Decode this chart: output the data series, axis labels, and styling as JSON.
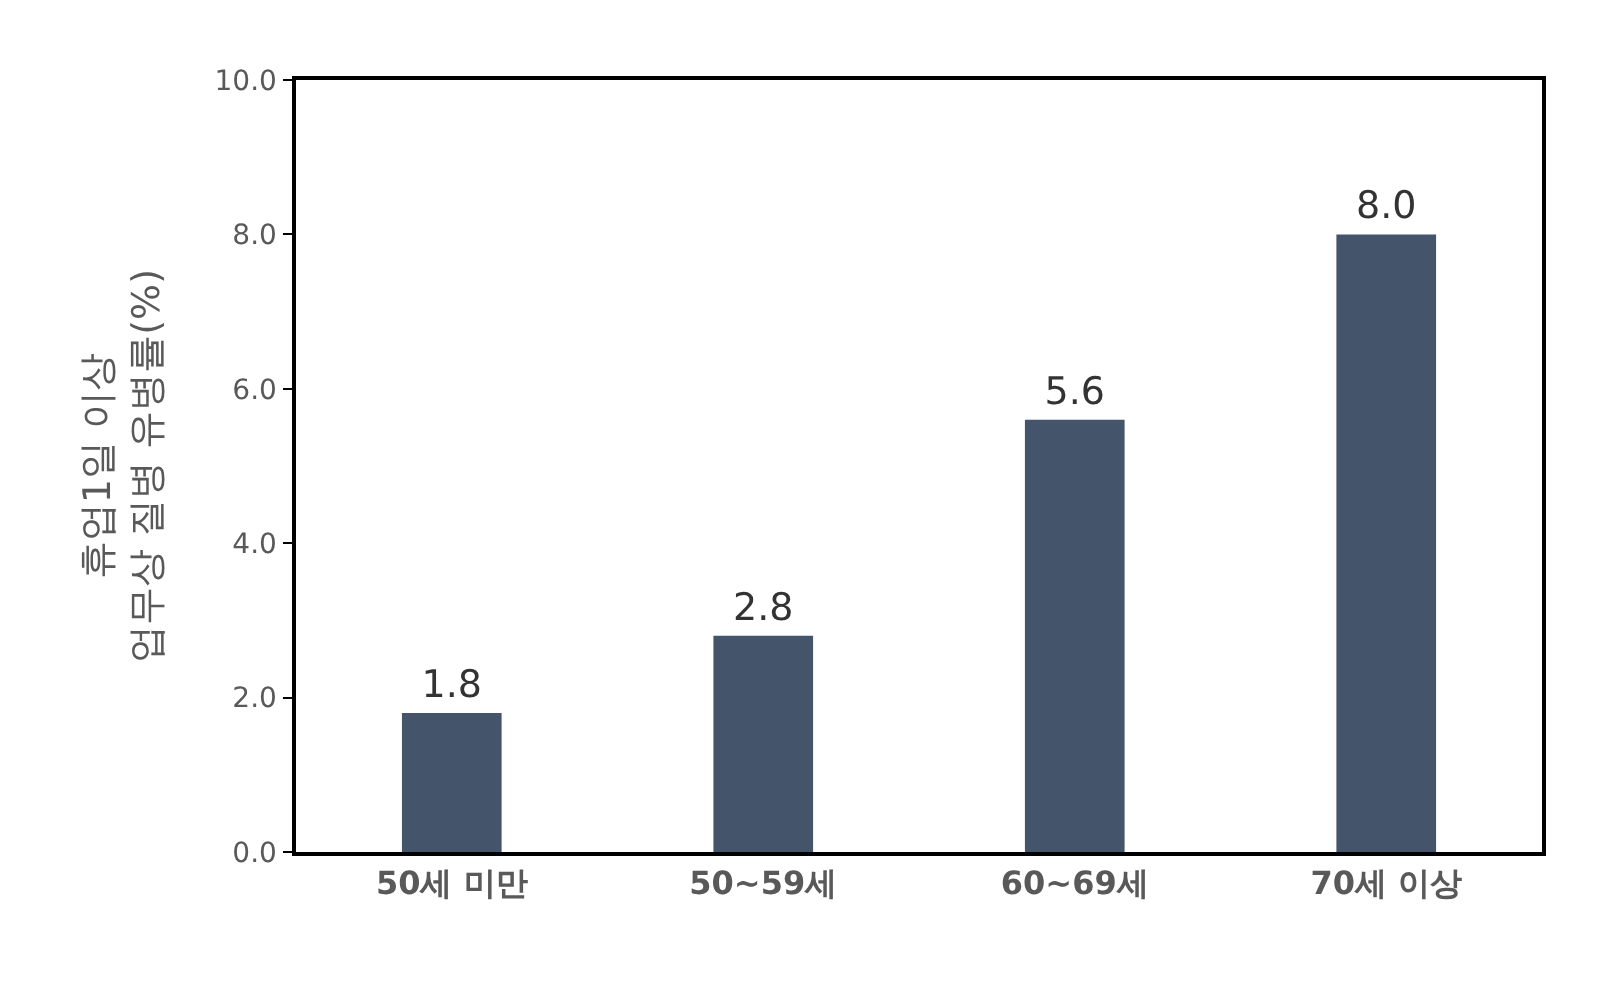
{
  "chart_data": {
    "type": "bar",
    "ylabel": "휴업1일 이상\n업무상 질병 유병률(%)",
    "categories": [
      "50세 미만",
      "50~59세",
      "60~69세",
      "70세 이상"
    ],
    "values": [
      1.8,
      2.8,
      5.6,
      8.0
    ],
    "value_labels": [
      "1.8",
      "2.8",
      "5.6",
      "8.0"
    ],
    "color": "#44546a",
    "ylim": [
      0,
      10
    ],
    "yticks": [
      {
        "value": 0,
        "label": "0.0"
      },
      {
        "value": 2,
        "label": "2.0"
      },
      {
        "value": 4,
        "label": "4.0"
      },
      {
        "value": 6,
        "label": "6.0"
      },
      {
        "value": 8,
        "label": "8.0"
      },
      {
        "value": 10,
        "label": "10.0"
      }
    ]
  }
}
